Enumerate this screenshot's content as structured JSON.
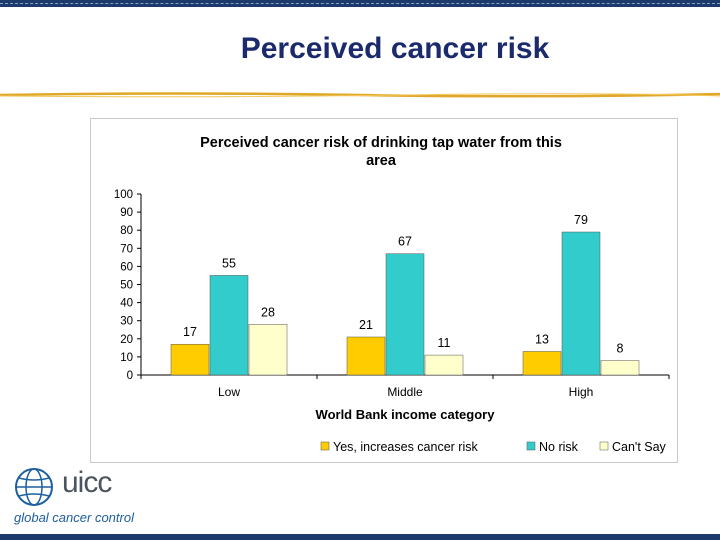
{
  "slide": {
    "title": "Perceived cancer risk"
  },
  "logo": {
    "wordmark": "uicc",
    "tagline": "global cancer control"
  },
  "colors": {
    "yes": "#ffcc00",
    "no": "#33cccc",
    "cant_say": "#ffffcc",
    "title": "#1a2a6c"
  },
  "chart_data": {
    "type": "bar",
    "title": "Perceived cancer risk of drinking tap water from this area",
    "title_lines": [
      "Perceived cancer risk of drinking tap water from this",
      "area"
    ],
    "xlabel": "World Bank income category",
    "ylabel": "",
    "categories": [
      "Low",
      "Middle",
      "High"
    ],
    "series": [
      {
        "name": "Yes, increases cancer risk",
        "values": [
          17,
          21,
          13
        ],
        "color": "#ffcc00"
      },
      {
        "name": "No risk",
        "values": [
          55,
          67,
          79
        ],
        "color": "#33cccc"
      },
      {
        "name": "Can't Say",
        "values": [
          28,
          11,
          8
        ],
        "color": "#ffffcc"
      }
    ],
    "ylim": [
      0,
      100
    ],
    "yticks": [
      "0",
      "10",
      "20",
      "30",
      "40",
      "50",
      "60",
      "70",
      "80",
      "90",
      "100"
    ],
    "data_labels": true,
    "grid": false,
    "legend_position": "bottom"
  }
}
